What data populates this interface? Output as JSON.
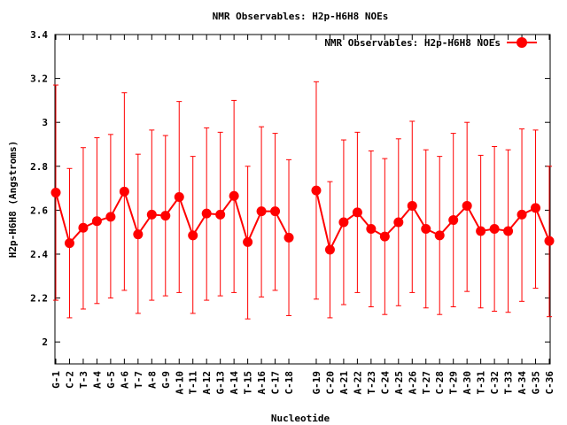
{
  "chart_data": {
    "type": "line",
    "title": "NMR Observables: H2p-H6H8 NOEs",
    "xlabel": "Nucleotide",
    "ylabel": "H2p-H6H8 (Angstroms)",
    "ylim": [
      1.9,
      3.4
    ],
    "yticks": [
      "2",
      "2.2",
      "2.4",
      "2.6",
      "2.8",
      "3",
      "3.2",
      "3.4"
    ],
    "grid": false,
    "legend_position": "top-right",
    "line_color": "#ff0000",
    "series": [
      {
        "name": "NMR Observables: H2p-H6H8 NOEs",
        "categories": [
          "G-1",
          "C-2",
          "T-3",
          "A-4",
          "G-5",
          "A-6",
          "T-7",
          "A-8",
          "G-9",
          "A-10",
          "T-11",
          "A-12",
          "G-13",
          "A-14",
          "T-15",
          "A-16",
          "C-17",
          "C-18",
          "",
          "G-19",
          "C-20",
          "A-21",
          "A-22",
          "T-23",
          "C-24",
          "A-25",
          "A-26",
          "T-27",
          "C-28",
          "T-29",
          "A-30",
          "T-31",
          "C-32",
          "T-33",
          "A-34",
          "G-35",
          "C-36"
        ],
        "values": [
          2.68,
          2.45,
          2.52,
          2.55,
          2.57,
          2.685,
          2.49,
          2.58,
          2.575,
          2.66,
          2.485,
          2.585,
          2.58,
          2.665,
          2.455,
          2.595,
          2.595,
          2.475,
          null,
          2.69,
          2.42,
          2.545,
          2.59,
          2.515,
          2.48,
          2.545,
          2.62,
          2.515,
          2.485,
          2.555,
          2.62,
          2.505,
          2.515,
          2.505,
          2.58,
          2.61,
          2.46
        ],
        "err_upper": [
          3.17,
          2.79,
          2.885,
          2.93,
          2.945,
          3.135,
          2.855,
          2.965,
          2.94,
          3.095,
          2.845,
          2.975,
          2.955,
          3.1,
          2.8,
          2.98,
          2.95,
          2.83,
          null,
          3.185,
          2.73,
          2.92,
          2.955,
          2.87,
          2.835,
          2.925,
          3.005,
          2.875,
          2.845,
          2.95,
          3.0,
          2.85,
          2.89,
          2.875,
          2.97,
          2.965,
          2.8
        ],
        "err_lower": [
          2.19,
          2.11,
          2.15,
          2.175,
          2.2,
          2.235,
          2.13,
          2.19,
          2.21,
          2.225,
          2.13,
          2.19,
          2.21,
          2.225,
          2.105,
          2.205,
          2.235,
          2.12,
          null,
          2.195,
          2.11,
          2.17,
          2.225,
          2.16,
          2.125,
          2.165,
          2.225,
          2.155,
          2.125,
          2.16,
          2.23,
          2.155,
          2.14,
          2.135,
          2.185,
          2.245,
          2.115
        ]
      }
    ]
  }
}
